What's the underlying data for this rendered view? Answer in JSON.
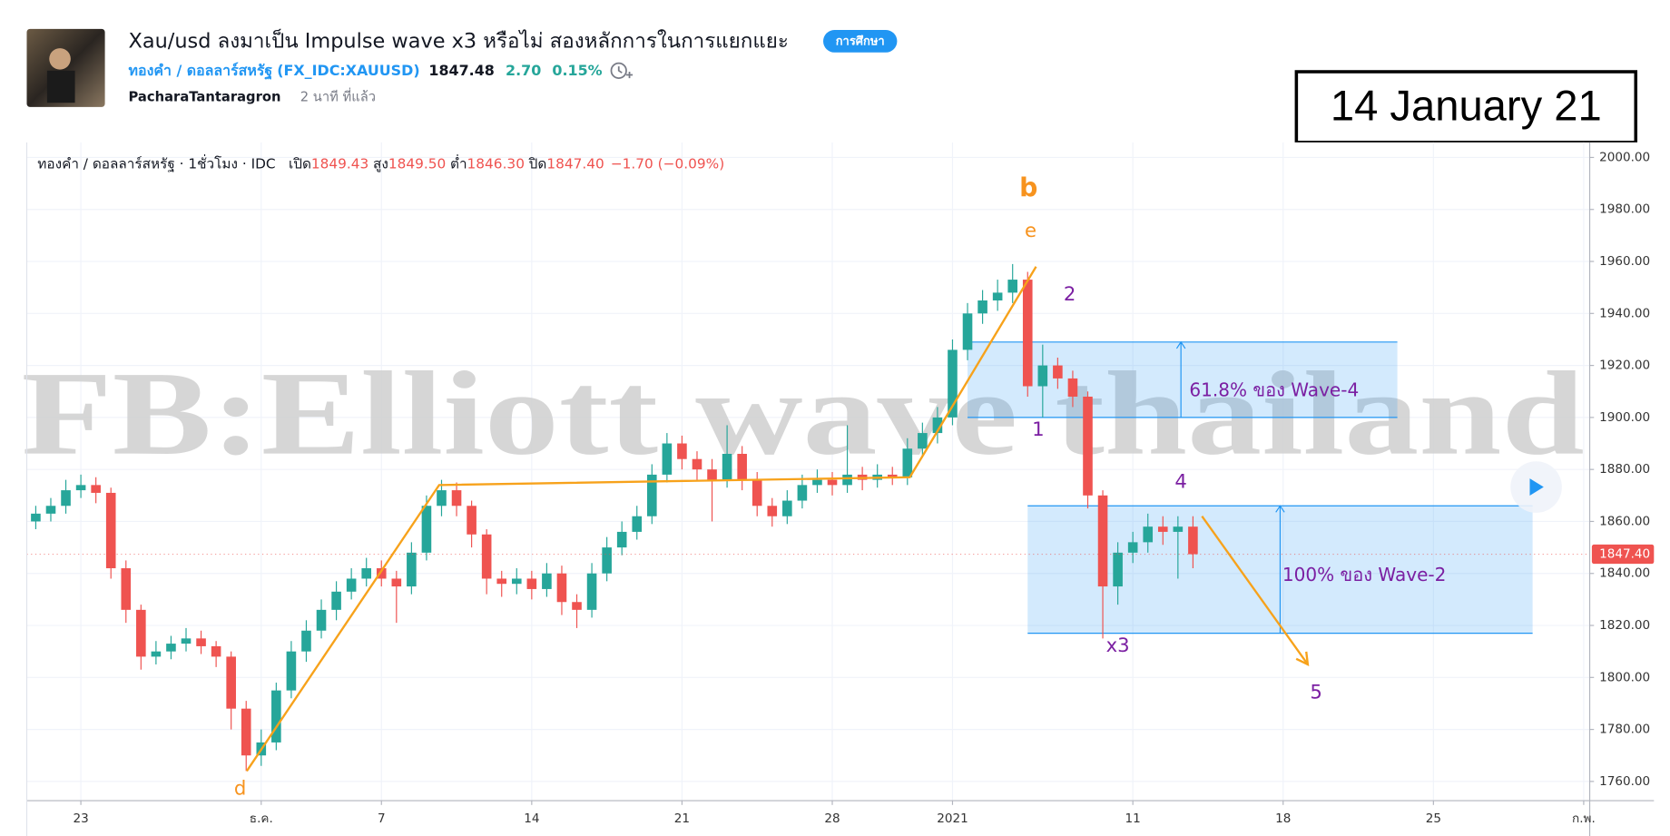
{
  "header": {
    "title": "Xau/usd ลงมาเป็น Impulse wave x3 หรือไม่ สองหลักการในการแยกแยะ",
    "tag": "การศึกษา",
    "symbol_name": "ทองคำ / ดอลลาร์สหรัฐ",
    "symbol_code": "(FX_IDC:XAUUSD)",
    "price": "1847.48",
    "change": "2.70",
    "change_pct": "0.15%",
    "author": "PacharaTantaragron",
    "time": "2 นาที ที่แล้ว"
  },
  "date_box": "14 January 21",
  "chart_data": {
    "type": "candlestick",
    "legend": {
      "symbol": "ทองคำ / ดอลลาร์สหรัฐ · 1ชั่วโมง · IDC",
      "items": [
        {
          "label": "เปิด",
          "value": "1849.43"
        },
        {
          "label": "สูง",
          "value": "1849.50"
        },
        {
          "label": "ต่ำ",
          "value": "1846.30"
        },
        {
          "label": "ปิด",
          "value": "1847.40"
        }
      ],
      "change": "−1.70 (−0.09%)"
    },
    "watermark": "FB:Elliott wave thailand",
    "x": [
      -1.5,
      -1,
      -0.5,
      0,
      0.5,
      1,
      1.5,
      2,
      2.5,
      3,
      3.5,
      4,
      4.5,
      5,
      5.5,
      6,
      6.5,
      7,
      7.5,
      8,
      8.5,
      9,
      9.5,
      10,
      10.5,
      11,
      11.5,
      12,
      12.5,
      13,
      13.5,
      14,
      14.5,
      15,
      15.5,
      16,
      16.5,
      17,
      17.5,
      18,
      18.5,
      19,
      19.5,
      20,
      20.5,
      21,
      21.5,
      22,
      22.5,
      23,
      23.5,
      24,
      24.5,
      25,
      25.5,
      26,
      26.5,
      27,
      27.5,
      28,
      28.5,
      29,
      29.5,
      30,
      30.5,
      31,
      31.5,
      32,
      32.5,
      33,
      33.5,
      34,
      34.5,
      35,
      35.5,
      36,
      36.5,
      37
    ],
    "open": [
      1860,
      1863,
      1866,
      1872,
      1874,
      1871,
      1842,
      1826,
      1808,
      1810,
      1813,
      1815,
      1812,
      1808,
      1788,
      1770,
      1775,
      1795,
      1810,
      1818,
      1826,
      1833,
      1838,
      1842,
      1838,
      1835,
      1848,
      1866,
      1872,
      1866,
      1855,
      1838,
      1836,
      1838,
      1834,
      1840,
      1829,
      1826,
      1840,
      1850,
      1856,
      1862,
      1878,
      1890,
      1884,
      1880,
      1876,
      1886,
      1876,
      1866,
      1862,
      1868,
      1874,
      1876,
      1874,
      1878,
      1876,
      1878,
      1877,
      1888,
      1894,
      1900,
      1926,
      1940,
      1945,
      1948,
      1953,
      1912,
      1920,
      1915,
      1908,
      1870,
      1835,
      1848,
      1852,
      1858,
      1856,
      1858
    ],
    "high": [
      1866,
      1869,
      1876,
      1878,
      1877,
      1873,
      1845,
      1828,
      1814,
      1816,
      1819,
      1818,
      1814,
      1810,
      1791,
      1780,
      1798,
      1814,
      1822,
      1830,
      1837,
      1842,
      1846,
      1845,
      1841,
      1852,
      1870,
      1876,
      1875,
      1868,
      1857,
      1841,
      1842,
      1841,
      1844,
      1843,
      1832,
      1844,
      1854,
      1860,
      1866,
      1882,
      1894,
      1893,
      1887,
      1884,
      1897,
      1889,
      1879,
      1869,
      1872,
      1878,
      1880,
      1879,
      1897,
      1881,
      1882,
      1881,
      1892,
      1898,
      1904,
      1930,
      1944,
      1949,
      1953,
      1959,
      1956,
      1928,
      1923,
      1918,
      1910,
      1872,
      1852,
      1856,
      1863,
      1862,
      1862,
      1862
    ],
    "low": [
      1857,
      1860,
      1863,
      1869,
      1867,
      1838,
      1821,
      1803,
      1805,
      1807,
      1810,
      1809,
      1804,
      1780,
      1764,
      1766,
      1772,
      1792,
      1806,
      1815,
      1822,
      1830,
      1835,
      1835,
      1821,
      1832,
      1845,
      1862,
      1862,
      1850,
      1832,
      1831,
      1832,
      1830,
      1831,
      1824,
      1819,
      1823,
      1837,
      1847,
      1853,
      1859,
      1875,
      1880,
      1876,
      1860,
      1873,
      1872,
      1862,
      1858,
      1859,
      1865,
      1871,
      1870,
      1871,
      1872,
      1873,
      1874,
      1874,
      1885,
      1890,
      1897,
      1922,
      1936,
      1941,
      1944,
      1908,
      1900,
      1911,
      1904,
      1865,
      1815,
      1828,
      1844,
      1848,
      1851,
      1838,
      1842
    ],
    "close": [
      1863,
      1866,
      1872,
      1874,
      1871,
      1842,
      1826,
      1808,
      1810,
      1813,
      1815,
      1812,
      1808,
      1788,
      1770,
      1775,
      1795,
      1810,
      1818,
      1826,
      1833,
      1838,
      1842,
      1838,
      1835,
      1848,
      1866,
      1872,
      1866,
      1855,
      1838,
      1836,
      1838,
      1834,
      1840,
      1829,
      1826,
      1840,
      1850,
      1856,
      1862,
      1878,
      1890,
      1884,
      1880,
      1876,
      1886,
      1876,
      1866,
      1862,
      1868,
      1874,
      1876,
      1874,
      1878,
      1876,
      1878,
      1877,
      1888,
      1894,
      1900,
      1926,
      1940,
      1945,
      1948,
      1953,
      1912,
      1920,
      1915,
      1908,
      1870,
      1835,
      1848,
      1852,
      1858,
      1856,
      1858,
      1847.4
    ],
    "up_color": "#26a69a",
    "down_color": "#ef5350",
    "xlim": [
      -1.8,
      50.2
    ],
    "xticks": [
      {
        "value": 0,
        "label": "23"
      },
      {
        "value": 6,
        "label": "ธ.ค."
      },
      {
        "value": 10,
        "label": "7"
      },
      {
        "value": 15,
        "label": "14"
      },
      {
        "value": 20,
        "label": "21"
      },
      {
        "value": 25,
        "label": "28"
      },
      {
        "value": 29,
        "label": "2021"
      },
      {
        "value": 35,
        "label": "11"
      },
      {
        "value": 40,
        "label": "18"
      },
      {
        "value": 45,
        "label": "25"
      },
      {
        "value": 50,
        "label": "ก.พ."
      }
    ],
    "ylim": [
      1752.6,
      2005.8
    ],
    "yticks": [
      {
        "value": 1760,
        "label": "1760.00"
      },
      {
        "value": 1780,
        "label": "1780.00"
      },
      {
        "value": 1800,
        "label": "1800.00"
      },
      {
        "value": 1820,
        "label": "1820.00"
      },
      {
        "value": 1840,
        "label": "1840.00"
      },
      {
        "value": 1860,
        "label": "1860.00"
      },
      {
        "value": 1880,
        "label": "1880.00"
      },
      {
        "value": 1900,
        "label": "1900.00"
      },
      {
        "value": 1920,
        "label": "1920.00"
      },
      {
        "value": 1940,
        "label": "1940.00"
      },
      {
        "value": 1960,
        "label": "1960.00"
      },
      {
        "value": 1980,
        "label": "1980.00"
      },
      {
        "value": 2000,
        "label": "2000.00"
      }
    ],
    "grid": true,
    "price_tag": {
      "value": 1847.4,
      "label": "1847.40",
      "color": "#ef5350"
    },
    "trend_lines": [
      {
        "color": "#f7a21b",
        "x": [
          5.52,
          11.92,
          27.58,
          31.78
        ],
        "y": [
          1764,
          1874,
          1877,
          1958
        ]
      },
      {
        "color": "#f7a21b",
        "x": [
          37.3,
          40.82
        ],
        "y": [
          1862,
          1805
        ]
      }
    ],
    "boxes": [
      {
        "x": [
          29.5,
          43.8
        ],
        "y": [
          1900,
          1929
        ],
        "arrow_x": 36.6,
        "label": "61.8% ของ Wave-4",
        "label_x": 39.7,
        "label_y": 1910
      },
      {
        "x": [
          31.5,
          48.3
        ],
        "y": [
          1817,
          1866
        ],
        "arrow_x": 39.9,
        "label": "100% ของ Wave-2",
        "label_x": 42.7,
        "label_y": 1839
      }
    ],
    "wave_labels": [
      {
        "text": "b",
        "x": 31.53,
        "y": 1988,
        "color": "#f7931e"
      },
      {
        "text": "e",
        "x": 31.6,
        "y": 1971.6,
        "color": "#f7931e"
      },
      {
        "text": "2",
        "x": 32.9,
        "y": 1947,
        "color": "#7b1fa2"
      },
      {
        "text": "1",
        "x": 31.85,
        "y": 1895,
        "color": "#7b1fa2"
      },
      {
        "text": "4",
        "x": 36.6,
        "y": 1875,
        "color": "#7b1fa2"
      },
      {
        "text": "x3",
        "x": 34.5,
        "y": 1812,
        "color": "#7b1fa2"
      },
      {
        "text": "5",
        "x": 41.1,
        "y": 1794,
        "color": "#7b1fa2"
      },
      {
        "text": "d",
        "x": 5.3,
        "y": 1757,
        "color": "#f7931e"
      }
    ]
  }
}
